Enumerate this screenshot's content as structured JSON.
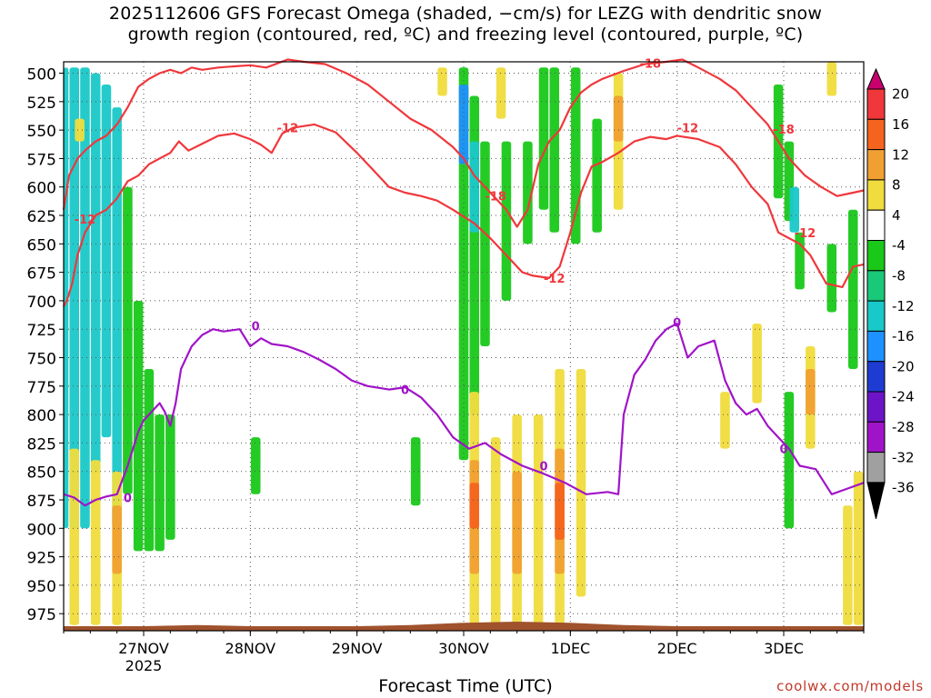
{
  "chart_data": {
    "type": "heatmap",
    "title_line1": "2025112606 GFS Forecast Omega (shaded, −cm/s) for LEZG with dendritic snow",
    "title_line2": "growth region (contoured, red, ºC) and freezing level (contoured, purple, ºC)",
    "xlabel": "Forecast Time (UTC)",
    "x_ticks": [
      {
        "label": "27NOV",
        "sub": "2025",
        "day": 1.0
      },
      {
        "label": "28NOV",
        "sub": "",
        "day": 2.0
      },
      {
        "label": "29NOV",
        "sub": "",
        "day": 3.0
      },
      {
        "label": "30NOV",
        "sub": "",
        "day": 4.0
      },
      {
        "label": "1DEC",
        "sub": "",
        "day": 5.0
      },
      {
        "label": "2DEC",
        "sub": "",
        "day": 6.0
      },
      {
        "label": "3DEC",
        "sub": "",
        "day": 7.0
      }
    ],
    "xlim": [
      0.25,
      7.75
    ],
    "y_ticks": [
      500,
      525,
      550,
      575,
      600,
      625,
      650,
      675,
      700,
      725,
      750,
      775,
      800,
      825,
      850,
      875,
      900,
      925,
      950,
      975
    ],
    "ylim": [
      490,
      990
    ],
    "colorbar": {
      "labels": [
        20,
        16,
        12,
        8,
        4,
        -4,
        -8,
        -12,
        -16,
        -20,
        -24,
        -28,
        -32,
        -36
      ],
      "colors": [
        "#c8006e",
        "#f0373c",
        "#f5641e",
        "#f0a032",
        "#f0dc3c",
        "#ffffff",
        "#19c819",
        "#19c878",
        "#19c8c8",
        "#1e90ff",
        "#1e3cd2",
        "#6e14c8",
        "#a014c8",
        "#a0a0a0",
        "#000000"
      ]
    },
    "shading": [
      {
        "cls": -12,
        "x": 0.25,
        "p0": 495,
        "p1": 900
      },
      {
        "cls": -12,
        "x": 0.35,
        "p0": 495,
        "p1": 900
      },
      {
        "cls": -12,
        "x": 0.45,
        "p0": 495,
        "p1": 900
      },
      {
        "cls": -12,
        "x": 0.55,
        "p0": 500,
        "p1": 850
      },
      {
        "cls": -12,
        "x": 0.65,
        "p0": 510,
        "p1": 820
      },
      {
        "cls": -12,
        "x": 0.75,
        "p0": 530,
        "p1": 900
      },
      {
        "cls": -8,
        "x": 0.85,
        "p0": 600,
        "p1": 870
      },
      {
        "cls": -8,
        "x": 0.95,
        "p0": 700,
        "p1": 920
      },
      {
        "cls": -8,
        "x": 1.05,
        "p0": 760,
        "p1": 920
      },
      {
        "cls": -8,
        "x": 1.15,
        "p0": 800,
        "p1": 920
      },
      {
        "cls": -8,
        "x": 1.25,
        "p0": 800,
        "p1": 910
      },
      {
        "cls": -8,
        "x": 4.0,
        "p0": 495,
        "p1": 840
      },
      {
        "cls": -16,
        "x": 4.0,
        "p0": 510,
        "p1": 580
      },
      {
        "cls": -8,
        "x": 4.1,
        "p0": 520,
        "p1": 800
      },
      {
        "cls": -12,
        "x": 4.1,
        "p0": 560,
        "p1": 640
      },
      {
        "cls": -8,
        "x": 4.2,
        "p0": 560,
        "p1": 740
      },
      {
        "cls": -8,
        "x": 4.4,
        "p0": 560,
        "p1": 700
      },
      {
        "cls": -8,
        "x": 4.6,
        "p0": 560,
        "p1": 650
      },
      {
        "cls": -8,
        "x": 4.75,
        "p0": 495,
        "p1": 620
      },
      {
        "cls": -8,
        "x": 4.85,
        "p0": 495,
        "p1": 640
      },
      {
        "cls": -8,
        "x": 5.05,
        "p0": 495,
        "p1": 650
      },
      {
        "cls": -8,
        "x": 5.25,
        "p0": 540,
        "p1": 640
      },
      {
        "cls": -8,
        "x": 6.95,
        "p0": 510,
        "p1": 610
      },
      {
        "cls": -8,
        "x": 7.05,
        "p0": 560,
        "p1": 630
      },
      {
        "cls": -12,
        "x": 7.1,
        "p0": 600,
        "p1": 640
      },
      {
        "cls": -8,
        "x": 7.05,
        "p0": 780,
        "p1": 900
      },
      {
        "cls": -8,
        "x": 7.15,
        "p0": 640,
        "p1": 690
      },
      {
        "cls": -8,
        "x": 7.45,
        "p0": 650,
        "p1": 710
      },
      {
        "cls": -8,
        "x": 7.65,
        "p0": 620,
        "p1": 760
      },
      {
        "cls": -8,
        "x": 2.05,
        "p0": 820,
        "p1": 870
      },
      {
        "cls": -8,
        "x": 3.55,
        "p0": 820,
        "p1": 880
      },
      {
        "cls": 4,
        "x": 0.35,
        "p0": 830,
        "p1": 985
      },
      {
        "cls": 4,
        "x": 0.55,
        "p0": 840,
        "p1": 985
      },
      {
        "cls": 4,
        "x": 0.75,
        "p0": 850,
        "p1": 985
      },
      {
        "cls": 8,
        "x": 0.75,
        "p0": 880,
        "p1": 940
      },
      {
        "cls": 4,
        "x": 4.1,
        "p0": 780,
        "p1": 985
      },
      {
        "cls": 4,
        "x": 4.3,
        "p0": 820,
        "p1": 985
      },
      {
        "cls": 4,
        "x": 4.5,
        "p0": 800,
        "p1": 985
      },
      {
        "cls": 4,
        "x": 4.7,
        "p0": 800,
        "p1": 985
      },
      {
        "cls": 4,
        "x": 4.9,
        "p0": 760,
        "p1": 985
      },
      {
        "cls": 4,
        "x": 5.1,
        "p0": 760,
        "p1": 960
      },
      {
        "cls": 8,
        "x": 4.1,
        "p0": 840,
        "p1": 940
      },
      {
        "cls": 12,
        "x": 4.1,
        "p0": 860,
        "p1": 900
      },
      {
        "cls": 8,
        "x": 4.5,
        "p0": 850,
        "p1": 940
      },
      {
        "cls": 8,
        "x": 4.9,
        "p0": 830,
        "p1": 940
      },
      {
        "cls": 12,
        "x": 4.9,
        "p0": 860,
        "p1": 910
      },
      {
        "cls": 4,
        "x": 4.35,
        "p0": 495,
        "p1": 540
      },
      {
        "cls": 4,
        "x": 3.8,
        "p0": 495,
        "p1": 520
      },
      {
        "cls": 4,
        "x": 5.45,
        "p0": 500,
        "p1": 620
      },
      {
        "cls": 8,
        "x": 5.45,
        "p0": 520,
        "p1": 560
      },
      {
        "cls": 4,
        "x": 6.45,
        "p0": 780,
        "p1": 830
      },
      {
        "cls": 4,
        "x": 6.75,
        "p0": 720,
        "p1": 790
      },
      {
        "cls": 4,
        "x": 7.25,
        "p0": 740,
        "p1": 830
      },
      {
        "cls": 8,
        "x": 7.25,
        "p0": 760,
        "p1": 800
      },
      {
        "cls": 4,
        "x": 7.6,
        "p0": 880,
        "p1": 985
      },
      {
        "cls": 4,
        "x": 7.7,
        "p0": 850,
        "p1": 985
      },
      {
        "cls": 4,
        "x": 7.45,
        "p0": 490,
        "p1": 520
      },
      {
        "cls": 4,
        "x": 0.4,
        "p0": 540,
        "p1": 560
      }
    ],
    "isotherm_minus12": {
      "x": [
        0.25,
        0.28,
        0.33,
        0.38,
        0.45,
        0.55,
        0.65,
        0.75,
        0.85,
        0.95,
        1.05,
        1.15,
        1.25,
        1.33,
        1.42,
        1.55,
        1.7,
        1.85,
        2.0,
        2.1,
        2.2,
        2.3,
        2.4,
        2.6,
        2.8,
        3.0,
        3.15,
        3.3,
        3.45,
        3.6,
        3.75,
        3.9,
        4.1,
        4.25,
        4.4,
        4.55,
        4.65,
        4.8,
        4.9,
        5.0,
        5.1,
        5.2,
        5.3,
        5.45,
        5.6,
        5.75,
        5.9,
        6.0,
        6.2,
        6.4,
        6.55,
        6.7,
        6.85,
        6.95,
        7.05,
        7.15,
        7.25,
        7.4,
        7.55,
        7.65,
        7.75
      ],
      "p": [
        705,
        700,
        685,
        660,
        640,
        625,
        620,
        610,
        595,
        590,
        580,
        575,
        570,
        560,
        568,
        562,
        555,
        553,
        558,
        563,
        570,
        553,
        548,
        545,
        552,
        570,
        585,
        600,
        605,
        608,
        612,
        620,
        632,
        645,
        660,
        675,
        678,
        680,
        670,
        640,
        605,
        582,
        578,
        570,
        560,
        556,
        558,
        555,
        558,
        565,
        580,
        600,
        615,
        640,
        645,
        650,
        660,
        685,
        688,
        670,
        668
      ]
    },
    "isotherm_minus18": {
      "x": [
        0.25,
        0.3,
        0.38,
        0.45,
        0.55,
        0.65,
        0.75,
        0.85,
        0.95,
        1.05,
        1.15,
        1.25,
        1.35,
        1.45,
        1.55,
        1.7,
        1.85,
        2.0,
        2.15,
        2.35,
        2.5,
        2.7,
        2.9,
        3.1,
        3.3,
        3.5,
        3.7,
        3.9,
        4.0,
        4.1,
        4.2,
        4.3,
        4.4,
        4.5,
        4.6,
        4.7,
        4.8,
        4.9,
        5.0,
        5.1,
        5.2,
        5.3,
        5.5,
        5.7,
        5.9,
        6.05,
        6.2,
        6.4,
        6.55,
        6.7,
        6.85,
        6.95,
        7.05,
        7.2,
        7.35,
        7.5,
        7.65,
        7.75
      ],
      "p": [
        620,
        590,
        575,
        568,
        560,
        555,
        545,
        530,
        512,
        505,
        500,
        497,
        500,
        495,
        497,
        495,
        494,
        493,
        495,
        488,
        490,
        492,
        500,
        510,
        525,
        540,
        550,
        565,
        575,
        590,
        600,
        610,
        620,
        635,
        620,
        580,
        560,
        550,
        530,
        517,
        510,
        505,
        498,
        492,
        490,
        488,
        495,
        505,
        515,
        530,
        545,
        560,
        575,
        590,
        600,
        608,
        605,
        603
      ]
    },
    "freezing_level_0": {
      "x": [
        0.25,
        0.35,
        0.45,
        0.55,
        0.65,
        0.75,
        0.85,
        0.95,
        1.0,
        1.05,
        1.1,
        1.15,
        1.2,
        1.25,
        1.3,
        1.35,
        1.45,
        1.55,
        1.65,
        1.75,
        1.9,
        2.0,
        2.1,
        2.2,
        2.35,
        2.5,
        2.65,
        2.8,
        2.95,
        3.1,
        3.3,
        3.45,
        3.6,
        3.75,
        3.9,
        4.05,
        4.2,
        4.35,
        4.55,
        4.75,
        4.95,
        5.15,
        5.35,
        5.45,
        5.5,
        5.6,
        5.7,
        5.8,
        5.9,
        6.0,
        6.1,
        6.2,
        6.35,
        6.45,
        6.55,
        6.65,
        6.75,
        6.85,
        6.95,
        7.05,
        7.15,
        7.3,
        7.45,
        7.6,
        7.75
      ],
      "p": [
        870,
        873,
        880,
        875,
        872,
        870,
        845,
        815,
        805,
        800,
        795,
        790,
        798,
        810,
        790,
        760,
        740,
        730,
        725,
        727,
        725,
        740,
        733,
        738,
        740,
        745,
        752,
        760,
        770,
        775,
        778,
        776,
        785,
        800,
        820,
        830,
        825,
        835,
        845,
        852,
        860,
        870,
        868,
        870,
        800,
        765,
        752,
        735,
        725,
        720,
        750,
        740,
        735,
        770,
        790,
        800,
        795,
        810,
        820,
        830,
        845,
        848,
        870,
        865,
        860
      ]
    },
    "contour_labels": [
      {
        "text": "-12",
        "x": 0.45,
        "p": 628,
        "color": "#f0373c"
      },
      {
        "text": "-12",
        "x": 2.35,
        "p": 548,
        "color": "#f0373c"
      },
      {
        "text": "-18",
        "x": 4.3,
        "p": 608,
        "color": "#f0373c"
      },
      {
        "text": "-12",
        "x": 4.85,
        "p": 680,
        "color": "#f0373c"
      },
      {
        "text": "-18",
        "x": 5.75,
        "p": 491,
        "color": "#f0373c"
      },
      {
        "text": "-12",
        "x": 6.1,
        "p": 548,
        "color": "#f0373c"
      },
      {
        "text": "-18",
        "x": 7.0,
        "p": 549,
        "color": "#f0373c"
      },
      {
        "text": "-12",
        "x": 7.2,
        "p": 640,
        "color": "#f0373c"
      },
      {
        "text": "0",
        "x": 0.85,
        "p": 873,
        "color": "#a014c8"
      },
      {
        "text": "0",
        "x": 2.05,
        "p": 722,
        "color": "#a014c8"
      },
      {
        "text": "0",
        "x": 3.45,
        "p": 778,
        "color": "#a014c8"
      },
      {
        "text": "0",
        "x": 4.75,
        "p": 845,
        "color": "#a014c8"
      },
      {
        "text": "0",
        "x": 6.0,
        "p": 719,
        "color": "#a014c8"
      },
      {
        "text": "0",
        "x": 7.0,
        "p": 830,
        "color": "#a014c8"
      }
    ],
    "terrain_color": "#a0522d",
    "grid": true
  },
  "credit": "coolwx.com/models"
}
